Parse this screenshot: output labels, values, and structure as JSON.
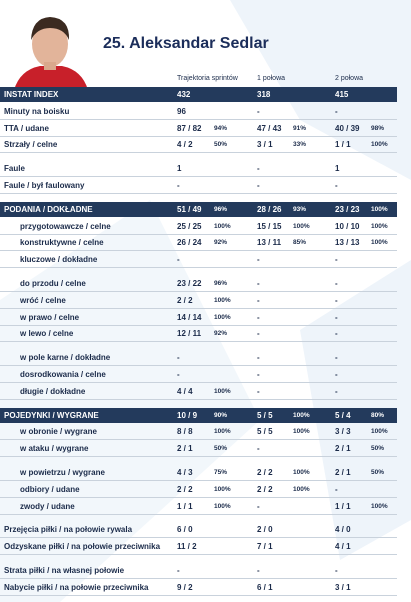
{
  "title": "25. Aleksandar Sedlar",
  "columns": [
    "Trajektoria sprintów",
    "1 połowa",
    "2 połowa"
  ],
  "blocks": [
    {
      "rows": [
        {
          "kind": "header",
          "label": "INSTAT INDEX",
          "cells": [
            [
              "432"
            ],
            [
              "318"
            ],
            [
              "415"
            ]
          ]
        },
        {
          "kind": "main",
          "label": "Minuty na boisku",
          "cells": [
            [
              "96"
            ],
            [
              "-"
            ],
            [
              "-"
            ]
          ]
        },
        {
          "kind": "main",
          "label": "TTA / udane",
          "cells": [
            [
              "87 / 82",
              "94%"
            ],
            [
              "47 / 43",
              "91%"
            ],
            [
              "40 / 39",
              "98%"
            ]
          ]
        },
        {
          "kind": "main",
          "label": "Strzały / celne",
          "cells": [
            [
              "4 / 2",
              "50%"
            ],
            [
              "3 / 1",
              "33%"
            ],
            [
              "1 / 1",
              "100%"
            ]
          ]
        }
      ]
    },
    {
      "rows": [
        {
          "kind": "main",
          "label": "Faule",
          "cells": [
            [
              "1"
            ],
            [
              "-"
            ],
            [
              "1"
            ]
          ]
        },
        {
          "kind": "main",
          "label": "Faule / był faulowany",
          "cells": [
            [
              "-"
            ],
            [
              "-"
            ],
            [
              "-"
            ]
          ]
        }
      ]
    },
    {
      "rows": [
        {
          "kind": "header",
          "label": "PODANIA / DOKŁADNE",
          "cells": [
            [
              "51 / 49",
              "96%"
            ],
            [
              "28 / 26",
              "93%"
            ],
            [
              "23 / 23",
              "100%"
            ]
          ]
        },
        {
          "kind": "sub",
          "label": "przygotowawcze / celne",
          "cells": [
            [
              "25 / 25",
              "100%"
            ],
            [
              "15 / 15",
              "100%"
            ],
            [
              "10 / 10",
              "100%"
            ]
          ]
        },
        {
          "kind": "sub",
          "label": "konstruktywne / celne",
          "cells": [
            [
              "26 / 24",
              "92%"
            ],
            [
              "13 / 11",
              "85%"
            ],
            [
              "13 / 13",
              "100%"
            ]
          ]
        },
        {
          "kind": "sub",
          "label": "kluczowe / dokładne",
          "cells": [
            [
              "-"
            ],
            [
              "-"
            ],
            [
              "-"
            ]
          ]
        }
      ]
    },
    {
      "rows": [
        {
          "kind": "sub",
          "label": "do przodu / celne",
          "cells": [
            [
              "23 / 22",
              "96%"
            ],
            [
              "-"
            ],
            [
              "-"
            ]
          ]
        },
        {
          "kind": "sub",
          "label": "wróć / celne",
          "cells": [
            [
              "2 / 2",
              "100%"
            ],
            [
              "-"
            ],
            [
              "-"
            ]
          ]
        },
        {
          "kind": "sub",
          "label": "w prawo / celne",
          "cells": [
            [
              "14 / 14",
              "100%"
            ],
            [
              "-"
            ],
            [
              "-"
            ]
          ]
        },
        {
          "kind": "sub",
          "label": "w lewo / celne",
          "cells": [
            [
              "12 / 11",
              "92%"
            ],
            [
              "-"
            ],
            [
              "-"
            ]
          ]
        }
      ]
    },
    {
      "rows": [
        {
          "kind": "sub",
          "label": "w pole karne / dokładne",
          "cells": [
            [
              "-"
            ],
            [
              "-"
            ],
            [
              "-"
            ]
          ]
        },
        {
          "kind": "sub",
          "label": "dosrodkowania / celne",
          "cells": [
            [
              "-"
            ],
            [
              "-"
            ],
            [
              "-"
            ]
          ]
        },
        {
          "kind": "sub",
          "label": "długie / dokładne",
          "cells": [
            [
              "4 / 4",
              "100%"
            ],
            [
              "-"
            ],
            [
              "-"
            ]
          ]
        }
      ]
    },
    {
      "rows": [
        {
          "kind": "header",
          "label": "POJEDYNKI / WYGRANE",
          "cells": [
            [
              "10 / 9",
              "90%"
            ],
            [
              "5 / 5",
              "100%"
            ],
            [
              "5 / 4",
              "80%"
            ]
          ]
        },
        {
          "kind": "sub",
          "label": "w obronie / wygrane",
          "cells": [
            [
              "8 / 8",
              "100%"
            ],
            [
              "5 / 5",
              "100%"
            ],
            [
              "3 / 3",
              "100%"
            ]
          ]
        },
        {
          "kind": "sub",
          "label": "w ataku / wygrane",
          "cells": [
            [
              "2 / 1",
              "50%"
            ],
            [
              "-"
            ],
            [
              "2 / 1",
              "50%"
            ]
          ]
        }
      ]
    },
    {
      "rows": [
        {
          "kind": "sub",
          "label": "w powietrzu / wygrane",
          "cells": [
            [
              "4 / 3",
              "75%"
            ],
            [
              "2 / 2",
              "100%"
            ],
            [
              "2 / 1",
              "50%"
            ]
          ]
        },
        {
          "kind": "sub",
          "label": "odbiory / udane",
          "cells": [
            [
              "2 / 2",
              "100%"
            ],
            [
              "2 / 2",
              "100%"
            ],
            [
              "-"
            ]
          ]
        },
        {
          "kind": "sub",
          "label": "zwody / udane",
          "cells": [
            [
              "1 / 1",
              "100%"
            ],
            [
              "-"
            ],
            [
              "1 / 1",
              "100%"
            ]
          ]
        }
      ]
    },
    {
      "rows": [
        {
          "kind": "main",
          "label": "Przejęcia piłki / na połowie rywala",
          "cells": [
            [
              "6 / 0"
            ],
            [
              "2 / 0"
            ],
            [
              "4 / 0"
            ]
          ]
        },
        {
          "kind": "main",
          "label": "Odzyskane piłki / na połowie przeciwnika",
          "cells": [
            [
              "11 / 2"
            ],
            [
              "7 / 1"
            ],
            [
              "4 / 1"
            ]
          ]
        }
      ]
    },
    {
      "rows": [
        {
          "kind": "main",
          "label": "Strata piłki / na własnej połowie",
          "cells": [
            [
              "-"
            ],
            [
              "-"
            ],
            [
              "-"
            ]
          ]
        },
        {
          "kind": "main",
          "label": "Nabycie piłki / na połowie przeciwnika",
          "cells": [
            [
              "9 / 2"
            ],
            [
              "6 / 1"
            ],
            [
              "3 / 1"
            ]
          ]
        }
      ]
    }
  ]
}
